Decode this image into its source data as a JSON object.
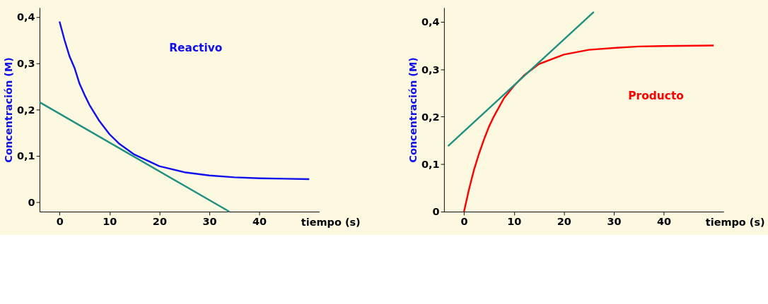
{
  "chart_data": [
    {
      "type": "line",
      "xlabel": "tiempo (s)",
      "ylabel": "Concentración (M)",
      "xlim": [
        -4,
        52
      ],
      "ylim": [
        -0.02,
        0.42
      ],
      "xticks": [
        0,
        10,
        20,
        30,
        40
      ],
      "yticks": [
        0,
        {
          "value": 0.1,
          "label": "0,1"
        },
        {
          "value": 0.2,
          "label": "0,2"
        },
        {
          "value": 0.3,
          "label": "0,3"
        },
        {
          "value": 0.4,
          "label": "0,4"
        }
      ],
      "grid": false,
      "series": [
        {
          "name": "Reactivo",
          "color": "#1010ee",
          "x": [
            0,
            1,
            2,
            3,
            4,
            5,
            6,
            8,
            10,
            12,
            15,
            20,
            25,
            30,
            35,
            40,
            45,
            50
          ],
          "values": [
            0.39,
            0.35,
            0.315,
            0.29,
            0.256,
            0.232,
            0.21,
            0.175,
            0.147,
            0.126,
            0.103,
            0.078,
            0.065,
            0.058,
            0.054,
            0.052,
            0.051,
            0.05
          ]
        },
        {
          "color": "#1f8f80",
          "x": [
            -4,
            34
          ],
          "values": [
            0.216,
            -0.02
          ]
        }
      ]
    },
    {
      "type": "line",
      "xlabel": "tiempo (s)",
      "ylabel": "Concentración (M)",
      "xlim": [
        -4,
        52
      ],
      "ylim": [
        0,
        0.43
      ],
      "xticks": [
        0,
        10,
        20,
        30,
        40
      ],
      "yticks": [
        0,
        {
          "value": 0.1,
          "label": "0,1"
        },
        {
          "value": 0.2,
          "label": "0,2"
        },
        {
          "value": 0.3,
          "label": "0,3"
        },
        {
          "value": 0.4,
          "label": "0,4"
        }
      ],
      "grid": false,
      "series": [
        {
          "name": "Producto",
          "color": "#ff0000",
          "x": [
            0,
            1,
            2,
            3,
            4,
            5,
            6,
            8,
            10,
            12,
            15,
            20,
            25,
            30,
            35,
            40,
            50
          ],
          "values": [
            0,
            0.047,
            0.088,
            0.122,
            0.152,
            0.179,
            0.201,
            0.239,
            0.265,
            0.287,
            0.311,
            0.331,
            0.341,
            0.345,
            0.348,
            0.349,
            0.35
          ]
        },
        {
          "color": "#1f8f80",
          "x": [
            -3.2,
            26
          ],
          "values": [
            0.138,
            0.421
          ]
        }
      ]
    }
  ]
}
